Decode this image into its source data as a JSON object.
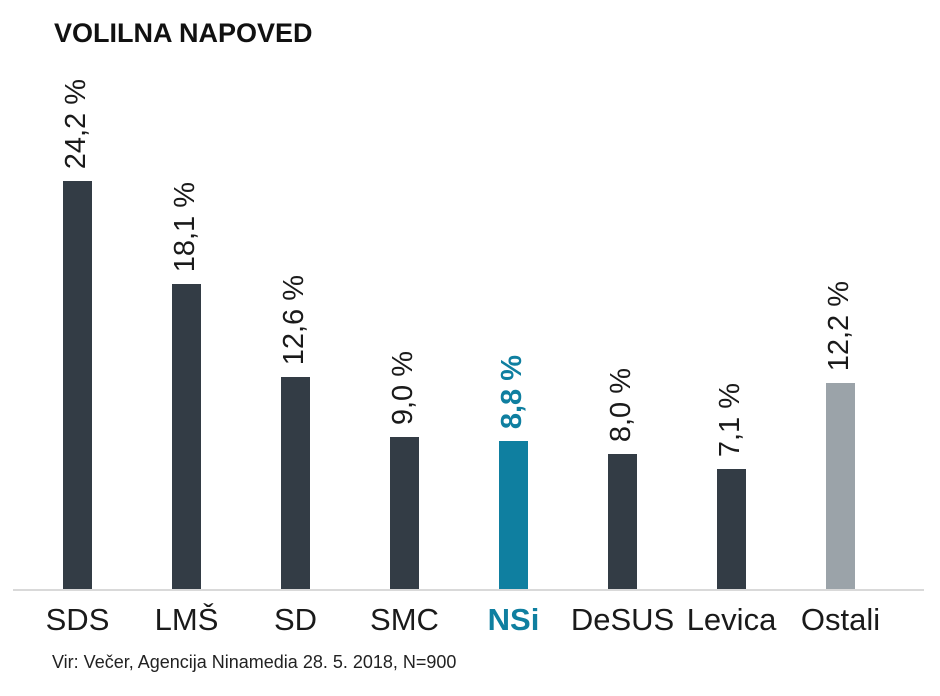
{
  "title": "VOLILNA NAPOVED",
  "source": "Vir: Večer, Agencija Ninamedia 28. 5. 2018, N=900",
  "colors": {
    "default_bar": "#333c45",
    "highlight_bar": "#0f7fa0",
    "other_bar": "#9ba3a9",
    "text": "#1a1a1a",
    "highlight_text": "#0f7fa0",
    "axis_line": "#d9d9d9"
  },
  "chart_data": {
    "type": "bar",
    "title": "VOLILNA NAPOVED",
    "categories": [
      "SDS",
      "LMŠ",
      "SD",
      "SMC",
      "NSi",
      "DeSUS",
      "Levica",
      "Ostali"
    ],
    "values": [
      24.2,
      18.1,
      12.6,
      9.0,
      8.8,
      8.0,
      7.1,
      12.2
    ],
    "value_labels": [
      "24,2 %",
      "18,1 %",
      "12,6 %",
      "9,0 %",
      "8,8 %",
      "8,0 %",
      "7,1 %",
      "12,2 %"
    ],
    "highlight_index": 4,
    "other_index": 7,
    "xlabel": "",
    "ylabel": "",
    "ylim": [
      0,
      26
    ],
    "grid": false,
    "legend": false,
    "value_label_rotation": -90,
    "source": "Vir: Večer, Agencija Ninamedia 28. 5. 2018, N=900"
  }
}
